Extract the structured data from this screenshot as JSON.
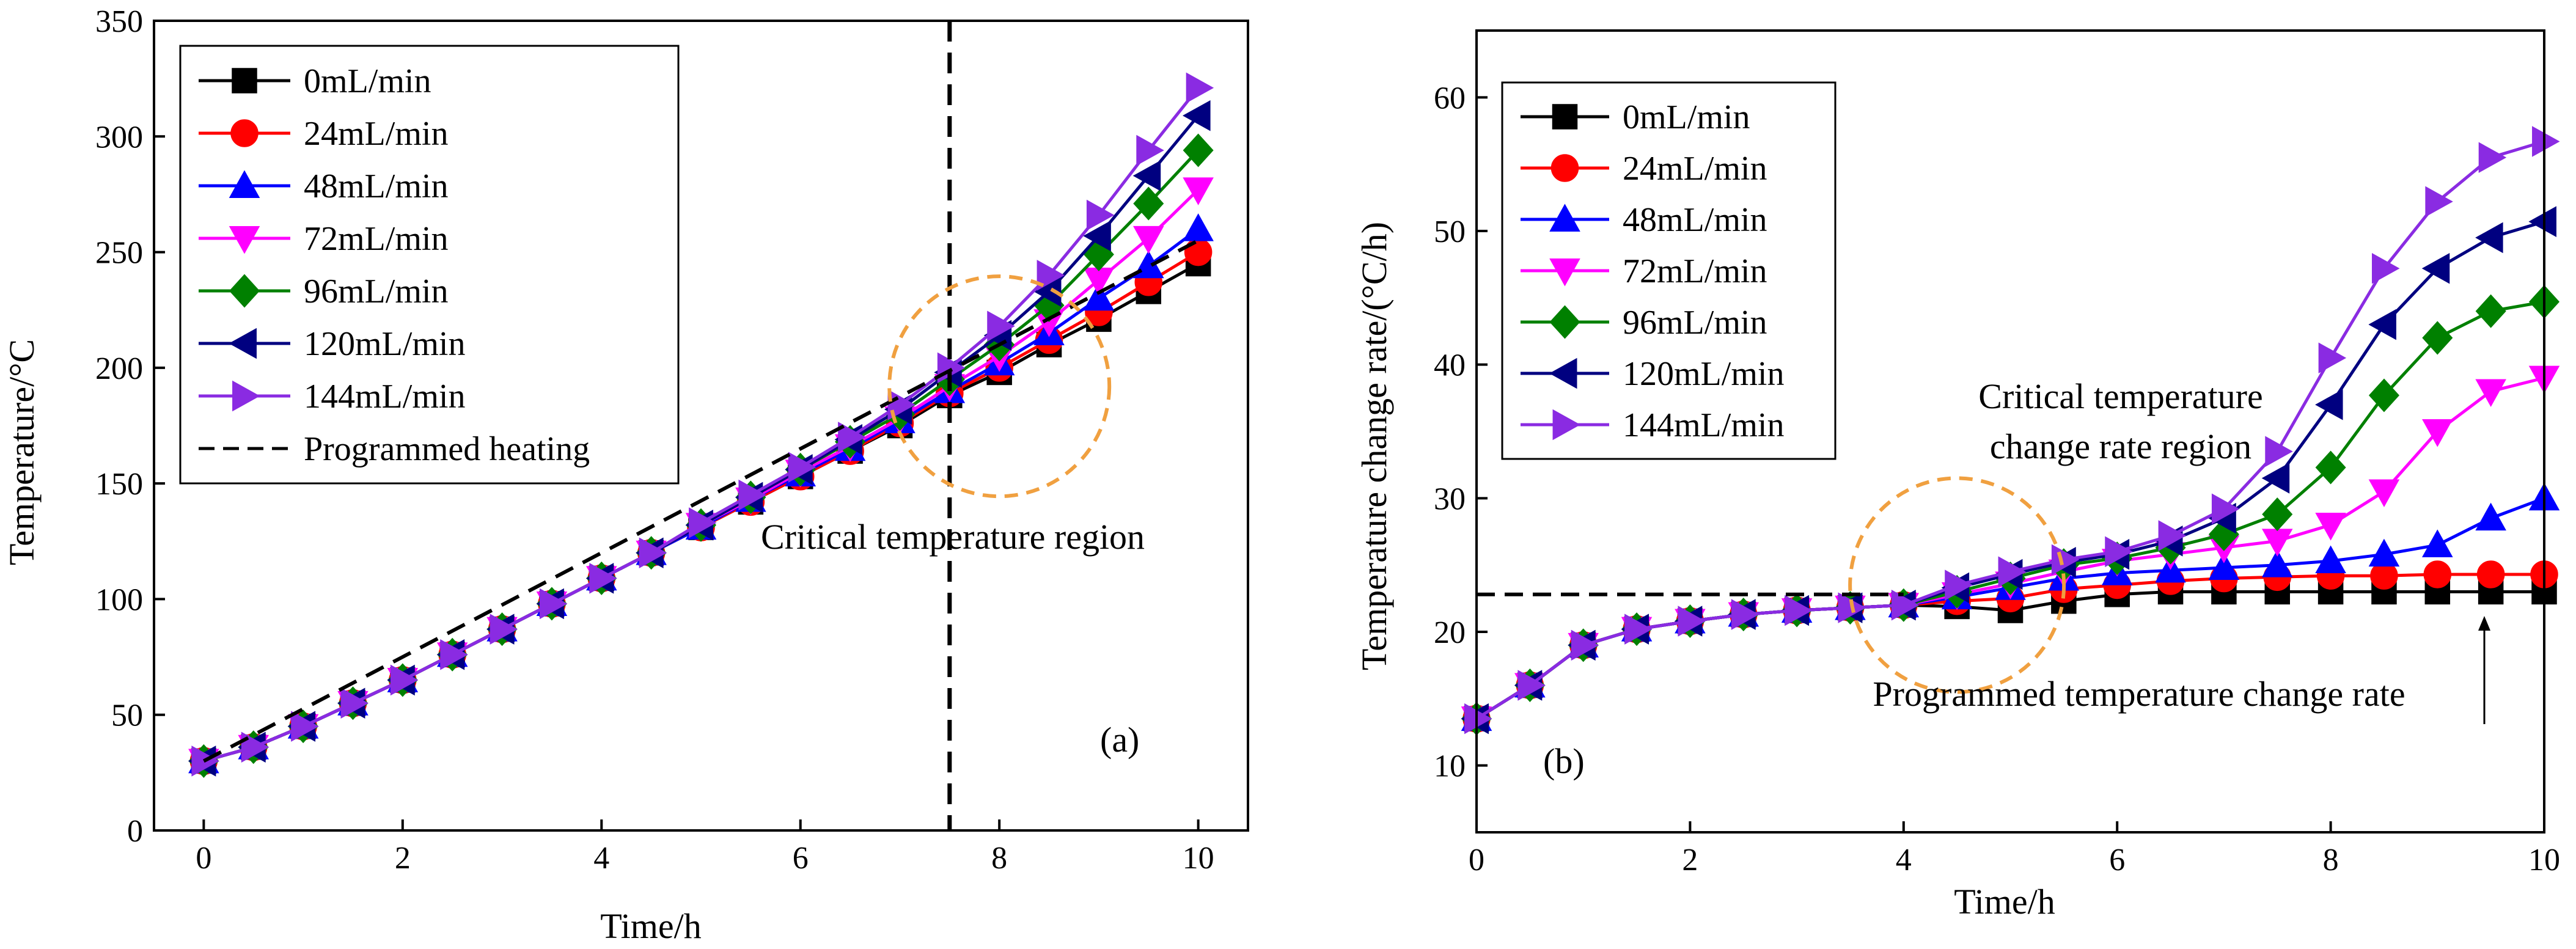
{
  "chart_data": [
    {
      "type": "line",
      "panel_label": "(a)",
      "xlabel": "Time/h",
      "ylabel": "Temperature/°C",
      "xlim": [
        -0.5,
        10.5
      ],
      "ylim": [
        0,
        350
      ],
      "xticks": [
        0,
        2,
        4,
        6,
        8,
        10
      ],
      "yticks": [
        0,
        50,
        100,
        150,
        200,
        250,
        300,
        350
      ],
      "x": [
        0,
        0.5,
        1,
        1.5,
        2,
        2.5,
        3,
        3.5,
        4,
        4.5,
        5,
        5.5,
        6,
        6.5,
        7,
        7.5,
        8,
        8.5,
        9,
        9.5,
        10
      ],
      "series": [
        {
          "name": "0mL/min",
          "color": "#000000",
          "marker": "square",
          "values": [
            30,
            36,
            45,
            55,
            65,
            76,
            87,
            98,
            109,
            120,
            131,
            142,
            153,
            164,
            175,
            188,
            198,
            210,
            221,
            233,
            245
          ]
        },
        {
          "name": "24mL/min",
          "color": "#ff0000",
          "marker": "circle",
          "values": [
            30,
            36,
            45,
            55,
            65,
            76,
            87,
            98,
            109,
            120,
            131,
            142,
            153,
            164,
            176,
            189,
            200,
            212,
            224,
            237,
            250
          ]
        },
        {
          "name": "48mL/min",
          "color": "#0000ff",
          "marker": "triangle-up",
          "values": [
            30,
            36,
            45,
            55,
            65,
            76,
            87,
            98,
            109,
            120,
            131,
            143,
            154,
            165,
            177,
            190,
            202,
            215,
            230,
            244,
            260
          ]
        },
        {
          "name": "72mL/min",
          "color": "#ff00ff",
          "marker": "triangle-down",
          "values": [
            30,
            36,
            45,
            55,
            65,
            76,
            87,
            98,
            109,
            120,
            132,
            143,
            155,
            166,
            178,
            192,
            205,
            220,
            238,
            256,
            277
          ]
        },
        {
          "name": "96mL/min",
          "color": "#008000",
          "marker": "diamond",
          "values": [
            30,
            36,
            45,
            55,
            65,
            76,
            87,
            98,
            109,
            120,
            132,
            144,
            156,
            168,
            180,
            195,
            210,
            227,
            249,
            271,
            294
          ]
        },
        {
          "name": "120mL/min",
          "color": "#000080",
          "marker": "triangle-left",
          "values": [
            30,
            36,
            45,
            55,
            65,
            76,
            87,
            98,
            109,
            120,
            132,
            144,
            156,
            169,
            182,
            198,
            214,
            233,
            257,
            283,
            309
          ]
        },
        {
          "name": "144mL/min",
          "color": "#8a2be2",
          "marker": "triangle-right",
          "values": [
            30,
            36,
            45,
            55,
            65,
            76,
            87,
            98,
            109,
            120,
            133,
            145,
            157,
            170,
            184,
            200,
            218,
            240,
            266,
            294,
            321
          ]
        }
      ],
      "reference_line": {
        "name": "Programmed heating",
        "style": "dashed",
        "color": "#000000",
        "x": [
          0,
          10
        ],
        "y": [
          30,
          255
        ]
      },
      "vertical_line": {
        "x": 7.5,
        "style": "dashed"
      },
      "annotation": {
        "text": "Critical temperature region",
        "circle_center": [
          8,
          192
        ],
        "circle_color": "#f0a040"
      },
      "legend": "top-left"
    },
    {
      "type": "line",
      "panel_label": "(b)",
      "xlabel": "Time/h",
      "ylabel": "Temperature change rate/(°C/h)",
      "xlim": [
        0,
        10
      ],
      "ylim": [
        5,
        65
      ],
      "xticks": [
        0,
        2,
        4,
        6,
        8,
        10
      ],
      "yticks": [
        10,
        20,
        30,
        40,
        50,
        60
      ],
      "x": [
        0,
        0.5,
        1,
        1.5,
        2,
        2.5,
        3,
        3.5,
        4,
        4.5,
        5,
        5.5,
        6,
        6.5,
        7,
        7.5,
        8,
        8.5,
        9,
        9.5,
        10
      ],
      "series": [
        {
          "name": "0mL/min",
          "color": "#000000",
          "marker": "square",
          "values": [
            13.5,
            16,
            19,
            20.2,
            20.8,
            21.3,
            21.6,
            21.8,
            22,
            21.9,
            21.6,
            22.3,
            22.8,
            23,
            23,
            23,
            23,
            23,
            23,
            23,
            23
          ]
        },
        {
          "name": "24mL/min",
          "color": "#ff0000",
          "marker": "circle",
          "values": [
            13.5,
            16,
            19,
            20.2,
            20.8,
            21.3,
            21.6,
            21.8,
            22,
            22.3,
            22.5,
            23.2,
            23.5,
            23.8,
            24,
            24.1,
            24.2,
            24.2,
            24.3,
            24.3,
            24.3
          ]
        },
        {
          "name": "48mL/min",
          "color": "#0000ff",
          "marker": "triangle-up",
          "values": [
            13.5,
            16,
            19,
            20.2,
            20.8,
            21.3,
            21.6,
            21.8,
            22,
            22.6,
            23.3,
            24,
            24.4,
            24.6,
            24.8,
            25,
            25.3,
            25.8,
            26.5,
            28.5,
            30
          ]
        },
        {
          "name": "72mL/min",
          "color": "#ff00ff",
          "marker": "triangle-down",
          "values": [
            13.5,
            16,
            19,
            20.2,
            20.8,
            21.3,
            21.6,
            21.8,
            22,
            22.8,
            23.6,
            24.5,
            25.3,
            25.8,
            26.3,
            26.8,
            28,
            30.5,
            35,
            38,
            39
          ]
        },
        {
          "name": "96mL/min",
          "color": "#008000",
          "marker": "diamond",
          "values": [
            13.5,
            16,
            19,
            20.2,
            20.8,
            21.3,
            21.6,
            21.8,
            22,
            23,
            24,
            25,
            25.5,
            26.3,
            27.3,
            28.8,
            32.3,
            37.7,
            42,
            44,
            44.7
          ]
        },
        {
          "name": "120mL/min",
          "color": "#000080",
          "marker": "triangle-left",
          "values": [
            13.5,
            16,
            19,
            20.2,
            20.8,
            21.3,
            21.6,
            21.8,
            22,
            23.3,
            24.3,
            25.2,
            25.8,
            26.8,
            28.5,
            31.5,
            37,
            43,
            47.2,
            49.5,
            50.7
          ]
        },
        {
          "name": "144mL/min",
          "color": "#8a2be2",
          "marker": "triangle-right",
          "values": [
            13.5,
            16,
            19,
            20.2,
            20.8,
            21.3,
            21.6,
            21.8,
            22,
            23.5,
            24.5,
            25.4,
            26,
            27.2,
            29.2,
            33.5,
            40.5,
            47.2,
            52.2,
            55.5,
            56.7
          ]
        }
      ],
      "reference_line": {
        "name": "Programmed temperature change rate",
        "style": "dashed",
        "color": "#000000",
        "x": [
          0,
          4
        ],
        "y": [
          22.8,
          22.8
        ]
      },
      "annotation": {
        "text_lines": [
          "Critical temperature",
          "change rate region"
        ],
        "circle_center": [
          4.5,
          23.5
        ],
        "circle_color": "#f0a040"
      },
      "arrow_annotation": {
        "text": "Programmed temperature change rate",
        "points_to": [
          9.5,
          23
        ]
      },
      "legend": "top-left"
    }
  ]
}
